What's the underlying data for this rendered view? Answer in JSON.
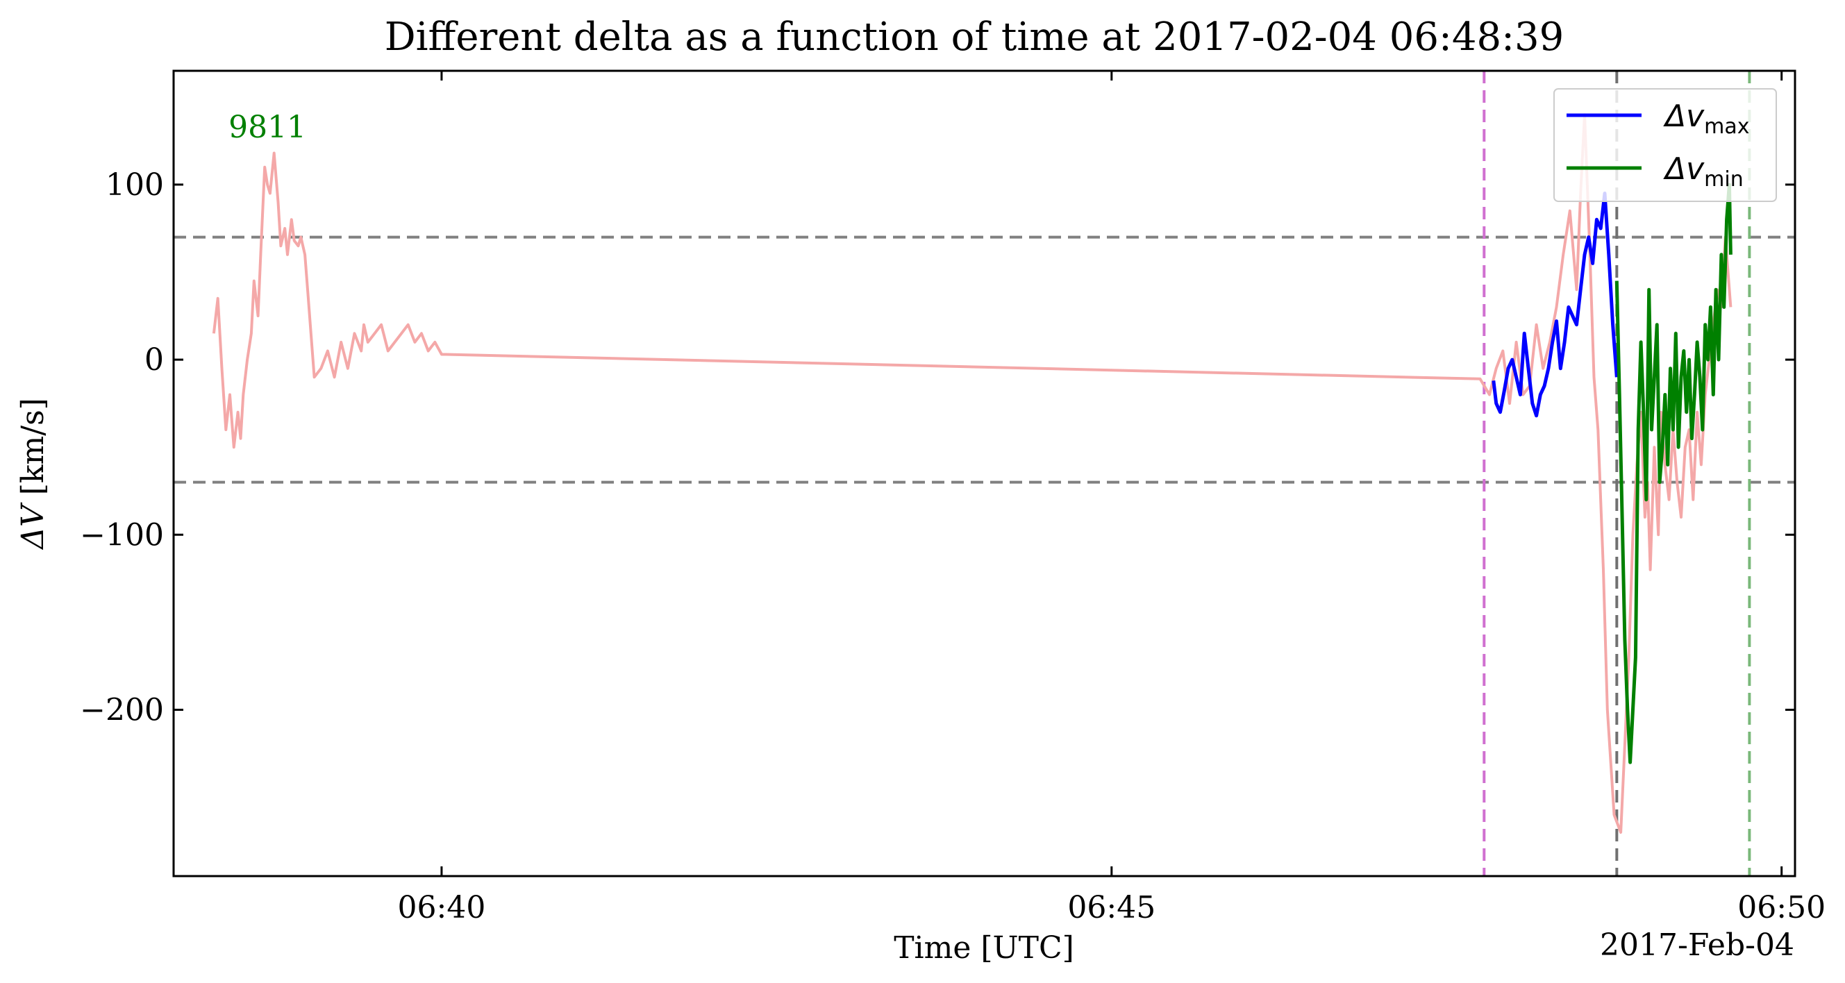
{
  "chart_data": {
    "type": "line",
    "title": "Different delta as a function of time at 2017-02-04 06:48:39",
    "xlabel": "Time [UTC]",
    "ylabel_symbol": "ΔV",
    "ylabel_unit": " [km/s]",
    "date_label": "2017-Feb-04",
    "xlim_minutes": [
      38.0,
      50.1
    ],
    "ylim": [
      -295,
      165
    ],
    "xticks": [
      {
        "value": 40,
        "label": "06:40"
      },
      {
        "value": 45,
        "label": "06:45"
      },
      {
        "value": 50,
        "label": "06:50"
      }
    ],
    "yticks": [
      {
        "value": 100,
        "label": "100"
      },
      {
        "value": 0,
        "label": "0"
      },
      {
        "value": -100,
        "label": "−100"
      },
      {
        "value": -200,
        "label": "−200"
      }
    ],
    "hlines": [
      {
        "y": 70,
        "color": "#808080"
      },
      {
        "y": -70,
        "color": "#808080"
      }
    ],
    "vlines": [
      {
        "x": 47.78,
        "color": "#d070d0"
      },
      {
        "x": 48.77,
        "color": "#707070"
      },
      {
        "x": 49.76,
        "color": "#7ab87a"
      }
    ],
    "annotation": {
      "text": "9811",
      "x": 38.7,
      "y": 127,
      "color": "#008000"
    },
    "legend": {
      "position": "top-right",
      "entries": [
        {
          "main": "Δv",
          "sub": "max",
          "color": "#0000ff"
        },
        {
          "main": "Δv",
          "sub": "min",
          "color": "#008000"
        }
      ]
    },
    "series": [
      {
        "color": "#f4a8a8",
        "x": [
          38.3,
          38.33,
          38.36,
          38.39,
          38.42,
          38.45,
          38.48,
          38.5,
          38.52,
          38.55,
          38.58,
          38.6,
          38.63,
          38.65,
          38.68,
          38.7,
          38.72,
          38.75,
          38.78,
          38.8,
          38.83,
          38.85,
          38.88,
          38.9,
          38.93,
          38.95,
          38.98,
          39.0,
          39.05,
          39.1,
          39.15,
          39.2,
          39.25,
          39.3,
          39.35,
          39.4,
          39.42,
          39.45,
          39.5,
          39.55,
          39.6,
          39.65,
          39.7,
          39.75,
          39.8,
          39.85,
          39.9,
          39.95,
          40.0,
          40.03,
          47.75,
          47.82,
          47.87,
          47.92,
          47.97,
          48.02,
          48.07,
          48.12,
          48.17,
          48.22,
          48.27,
          48.32,
          48.37,
          48.42,
          48.47,
          48.5,
          48.53,
          48.57,
          48.6,
          48.63,
          48.67,
          48.7,
          48.75,
          48.8,
          48.83,
          48.86,
          48.89,
          48.92,
          48.95,
          48.98,
          49.0,
          49.02,
          49.05,
          49.08,
          49.1,
          49.13,
          49.16,
          49.19,
          49.22,
          49.25,
          49.28,
          49.31,
          49.34,
          49.37,
          49.4,
          49.43,
          49.46,
          49.49,
          49.52,
          49.55,
          49.58,
          49.62
        ],
        "y": [
          15,
          35,
          -5,
          -40,
          -20,
          -50,
          -30,
          -45,
          -20,
          0,
          15,
          45,
          25,
          60,
          110,
          100,
          95,
          118,
          90,
          65,
          75,
          60,
          80,
          68,
          65,
          70,
          60,
          40,
          -10,
          -5,
          5,
          -10,
          10,
          -5,
          15,
          5,
          20,
          10,
          15,
          20,
          5,
          10,
          15,
          20,
          10,
          15,
          5,
          10,
          3,
          3,
          -11,
          -20,
          -5,
          5,
          -25,
          10,
          -20,
          -15,
          20,
          -5,
          10,
          30,
          60,
          85,
          40,
          95,
          140,
          60,
          -10,
          -40,
          -120,
          -200,
          -260,
          -270,
          -220,
          -170,
          -100,
          -60,
          -30,
          -90,
          -70,
          -120,
          -50,
          -100,
          -30,
          -60,
          -80,
          -40,
          -70,
          -90,
          -50,
          -40,
          -80,
          -30,
          -60,
          -20,
          0,
          20,
          40,
          30,
          70,
          30
        ]
      },
      {
        "color": "#0000ff",
        "x": [
          47.85,
          47.87,
          47.9,
          47.93,
          47.96,
          47.99,
          48.02,
          48.05,
          48.08,
          48.11,
          48.14,
          48.17,
          48.2,
          48.23,
          48.26,
          48.29,
          48.32,
          48.35,
          48.38,
          48.41,
          48.44,
          48.47,
          48.5,
          48.53,
          48.56,
          48.59,
          48.62,
          48.65,
          48.68,
          48.71,
          48.74,
          48.77
        ],
        "y": [
          -12,
          -25,
          -30,
          -18,
          -5,
          0,
          -10,
          -20,
          15,
          -5,
          -25,
          -32,
          -20,
          -15,
          -5,
          10,
          22,
          -5,
          10,
          30,
          25,
          20,
          40,
          60,
          70,
          55,
          80,
          75,
          95,
          60,
          20,
          -10
        ]
      },
      {
        "color": "#008000",
        "x": [
          48.77,
          48.79,
          48.81,
          48.83,
          48.85,
          48.87,
          48.89,
          48.91,
          48.93,
          48.95,
          48.97,
          48.99,
          49.01,
          49.03,
          49.05,
          49.07,
          49.09,
          49.11,
          49.13,
          49.15,
          49.17,
          49.19,
          49.21,
          49.23,
          49.25,
          49.27,
          49.29,
          49.31,
          49.33,
          49.35,
          49.37,
          49.39,
          49.41,
          49.43,
          49.45,
          49.47,
          49.49,
          49.51,
          49.53,
          49.55,
          49.57,
          49.59,
          49.61,
          49.62
        ],
        "y": [
          45,
          -20,
          -90,
          -160,
          -200,
          -230,
          -200,
          -170,
          -40,
          10,
          -30,
          -80,
          40,
          -40,
          -10,
          20,
          -70,
          -50,
          -20,
          -60,
          -5,
          -40,
          15,
          -50,
          -10,
          5,
          -30,
          0,
          -45,
          -20,
          10,
          -10,
          -40,
          20,
          0,
          30,
          -20,
          40,
          0,
          60,
          30,
          80,
          100,
          60
        ]
      }
    ]
  }
}
